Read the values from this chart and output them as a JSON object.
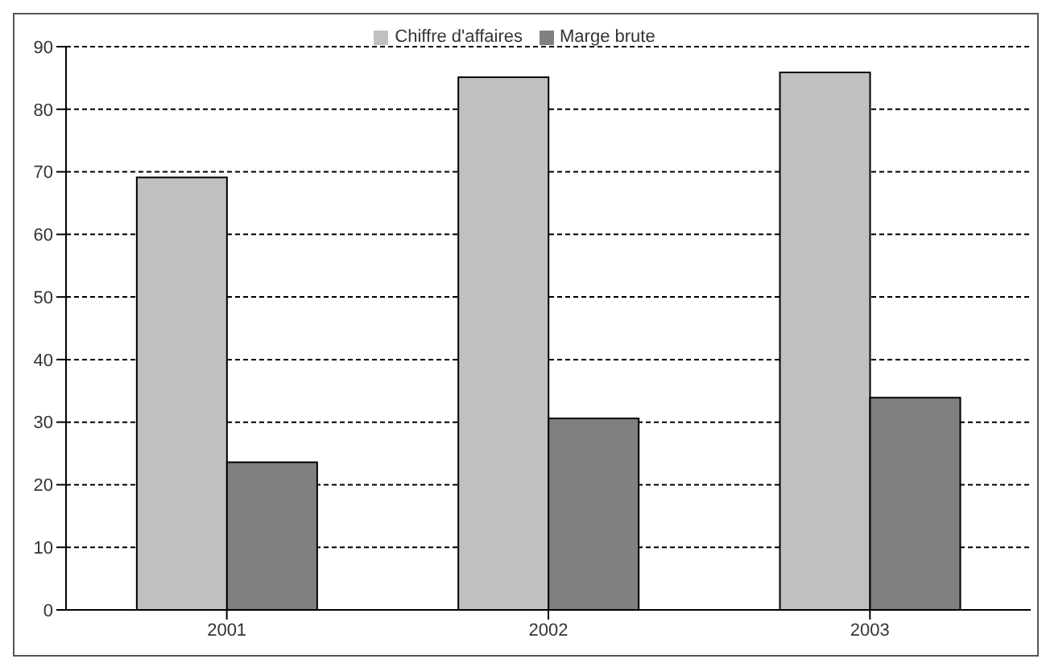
{
  "chart_data": {
    "type": "bar",
    "categories": [
      "2001",
      "2002",
      "2003"
    ],
    "series": [
      {
        "name": "Chiffre d'affaires",
        "color": "#c0c0c0",
        "values": [
          69.1,
          85.1,
          85.9
        ]
      },
      {
        "name": "Marge brute",
        "color": "#808080",
        "values": [
          23.6,
          30.6,
          33.9
        ]
      }
    ],
    "ylim": [
      0,
      90
    ],
    "yticks": [
      0,
      10,
      20,
      30,
      40,
      50,
      60,
      70,
      80,
      90
    ],
    "grid": "y",
    "legend": "top"
  }
}
